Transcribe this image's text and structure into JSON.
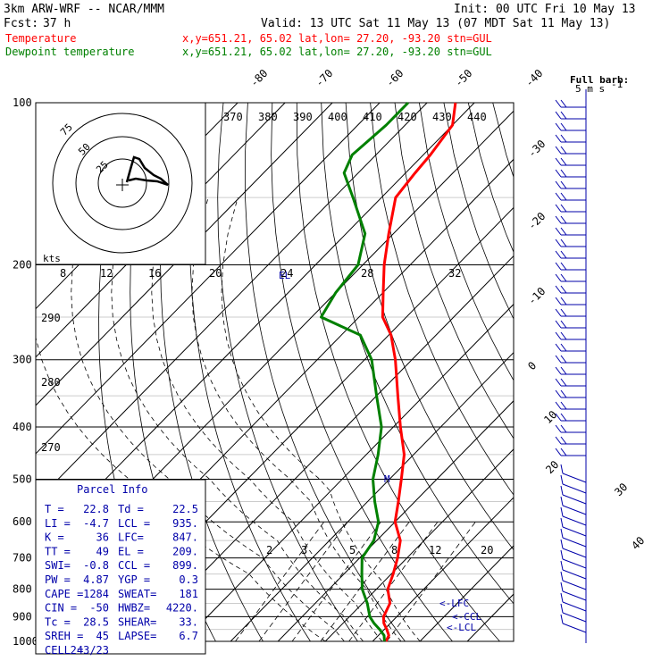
{
  "header": {
    "model": "3km ARW-WRF -- NCAR/MMM",
    "init": "Init: 00 UTC Fri 10 May 13",
    "fcst_label": "Fcst:",
    "fcst_value": "37 h",
    "valid": "Valid: 13 UTC Sat 11 May 13 (07 MDT Sat 11 May 13)"
  },
  "legend": {
    "temperature": {
      "label": "Temperature",
      "info": "x,y=651.21, 65.02   lat,lon= 27.20, -93.20   stn=GUL",
      "color": "#ff0000"
    },
    "dewpoint": {
      "label": "Dewpoint temperature",
      "info": "x,y=651.21, 65.02   lat,lon= 27.20, -93.20   stn=GUL",
      "color": "#008000"
    }
  },
  "barb_legend": {
    "title": "Full barb:",
    "value": "5 m s",
    "exp": "-1"
  },
  "hodograph": {
    "unit_label": "kts",
    "rings": [
      "25",
      "50",
      "75"
    ]
  },
  "parcel_info": {
    "title": "Parcel Info",
    "rows": [
      [
        "T  =",
        "22.8",
        "Td =",
        "22.5"
      ],
      [
        "LI =",
        "-4.7",
        "LCL =",
        "935."
      ],
      [
        "K  =",
        "36",
        "LFC=",
        "847."
      ],
      [
        "TT =",
        "49",
        "EL =",
        "209."
      ],
      [
        "SWI=",
        "-0.8",
        "CCL =",
        "899."
      ],
      [
        "PW =",
        "4.87",
        "YGP =",
        "0.3"
      ],
      [
        "CAPE =",
        "1284",
        "SWEAT=",
        "181"
      ],
      [
        "CIN =",
        "-50",
        "HWBZ=",
        "4220."
      ],
      [
        "Tc =",
        "28.5",
        "SHEAR=",
        "33."
      ],
      [
        "SREH =",
        "45",
        "LAPSE=",
        "6.7"
      ],
      [
        "CELL =",
        "243/23",
        "",
        ""
      ]
    ]
  },
  "level_markers": {
    "lfc": "<-LFC",
    "ccl": "<-CCL",
    "lcl": "<-LCL",
    "el": "EL",
    "m": "M"
  },
  "chart_data": {
    "type": "line",
    "chart_kind": "Skew-T log-P thermodynamic diagram",
    "y_axis_ticks_hpa": [
      "100",
      "200",
      "300",
      "400",
      "500",
      "600",
      "700",
      "800",
      "900",
      "1000"
    ],
    "pressure_range_hpa": [
      1000,
      100
    ],
    "isotherm_labels_c": [
      "-80",
      "-70",
      "-60",
      "-50",
      "-40",
      "-30",
      "-20",
      "-10",
      "0",
      "10",
      "20",
      "30",
      "40"
    ],
    "theta_e_labels_k": [
      "370",
      "380",
      "390",
      "400",
      "410",
      "420",
      "430",
      "440"
    ],
    "dry_adiabat_labels_k": [
      "290",
      "280",
      "270"
    ],
    "mixing_ratio_labels": [
      "2",
      "3",
      "5",
      "8",
      "12",
      "20"
    ],
    "hodograph_tick_labels": [
      "8",
      "12",
      "16",
      "20",
      "24",
      "28",
      "32"
    ],
    "series": [
      {
        "name": "Temperature",
        "color": "#ff0000",
        "pressure_hpa": [
          1000,
          975,
          950,
          925,
          900,
          850,
          800,
          750,
          700,
          650,
          600,
          550,
          500,
          450,
          400,
          350,
          300,
          270,
          250,
          225,
          200,
          175,
          150,
          135,
          125,
          110,
          100
        ],
        "temp_c": [
          22.8,
          22.2,
          20.5,
          18.6,
          17.2,
          15.8,
          12.4,
          10.4,
          8.0,
          5.0,
          0.0,
          -3.5,
          -7.5,
          -12.0,
          -18.5,
          -25.5,
          -33.5,
          -39.5,
          -45.0,
          -50.0,
          -55.5,
          -61.0,
          -67.0,
          -68.0,
          -68.5,
          -70.0,
          -74.0
        ]
      },
      {
        "name": "Dewpoint temperature",
        "color": "#008000",
        "pressure_hpa": [
          1000,
          975,
          950,
          925,
          900,
          850,
          800,
          750,
          700,
          650,
          600,
          550,
          500,
          450,
          400,
          350,
          300,
          270,
          250,
          225,
          200,
          175,
          150,
          135,
          125,
          110,
          100
        ],
        "temp_c": [
          22.5,
          21.2,
          19.0,
          16.5,
          14.3,
          11.0,
          7.0,
          3.8,
          0.5,
          -0.6,
          -3.5,
          -8.5,
          -13.5,
          -17.5,
          -22.5,
          -30.0,
          -38.5,
          -46.0,
          -58.0,
          -60.0,
          -61.0,
          -66.0,
          -76.0,
          -83.0,
          -85.0,
          -84.0,
          -84.0
        ]
      }
    ]
  }
}
